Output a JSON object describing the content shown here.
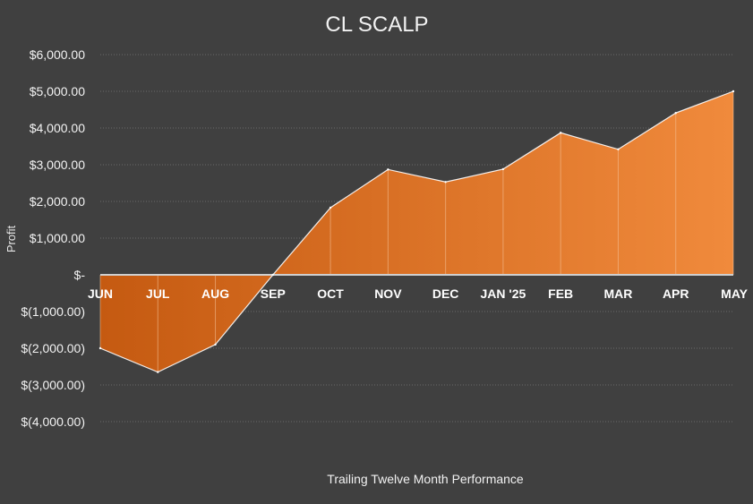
{
  "chart_data": {
    "type": "area",
    "title": "CL SCALP",
    "xlabel": "Trailing Twelve Month Performance",
    "ylabel": "Profit",
    "categories": [
      "JUN",
      "JUL",
      "AUG",
      "SEP",
      "OCT",
      "NOV",
      "DEC",
      "JAN '25",
      "FEB",
      "MAR",
      "APR",
      "MAY"
    ],
    "series": [
      {
        "values": [
          -2000,
          -2650,
          -1900,
          0,
          1830,
          2870,
          2530,
          2880,
          3870,
          3420,
          4410,
          5000
        ]
      }
    ],
    "ylim": [
      -4000,
      6000
    ],
    "yticks": [
      6000,
      5000,
      4000,
      3000,
      2000,
      1000,
      0,
      -1000,
      -2000,
      -3000,
      -4000
    ],
    "ytick_labels": [
      "$6,000.00",
      "$5,000.00",
      "$4,000.00",
      "$3,000.00",
      "$2,000.00",
      "$1,000.00",
      "$-",
      "$(1,000.00)",
      "$(2,000.00)",
      "$(3,000.00)",
      "$(4,000.00)"
    ],
    "grid": true,
    "legend": "none",
    "colors": {
      "background": "#404040",
      "area_dark": "#c55a11",
      "area_light": "#f08a3c",
      "line": "#ffffff"
    }
  }
}
